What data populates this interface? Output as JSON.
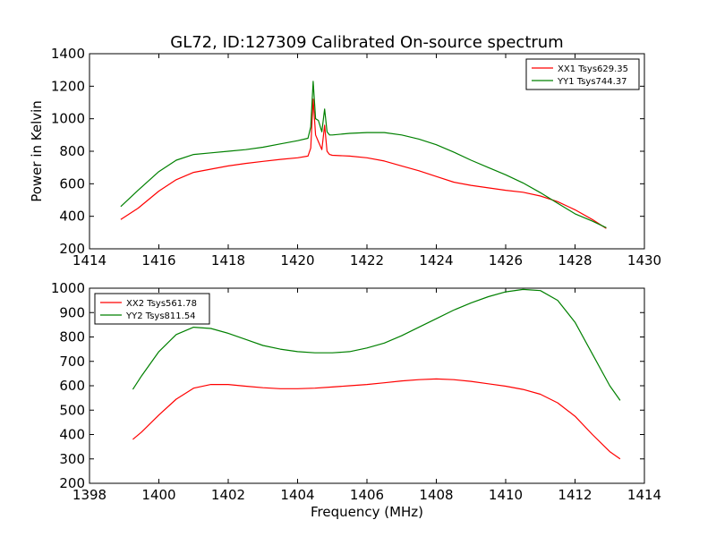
{
  "title": "GL72, ID:127309 Calibrated On-source spectrum",
  "colors": {
    "xx": "#ff0000",
    "yy": "#008000"
  },
  "chart_data": [
    {
      "type": "line",
      "title": "GL72, ID:127309 Calibrated On-source spectrum",
      "xlabel": "",
      "ylabel": "Power in Kelvin",
      "xlim": [
        1414,
        1430
      ],
      "ylim": [
        200,
        1400
      ],
      "xticks": [
        1414,
        1416,
        1418,
        1420,
        1422,
        1424,
        1426,
        1428,
        1430
      ],
      "yticks": [
        200,
        400,
        600,
        800,
        1000,
        1200,
        1400
      ],
      "grid": false,
      "legend_position": "top-right",
      "series": [
        {
          "name": "XX1 Tsys629.35",
          "color": "#ff0000",
          "x": [
            1414.9,
            1415.4,
            1416.0,
            1416.5,
            1417.0,
            1417.5,
            1418.0,
            1418.5,
            1419.0,
            1419.5,
            1420.0,
            1420.3,
            1420.38,
            1420.45,
            1420.52,
            1420.6,
            1420.7,
            1420.78,
            1420.85,
            1420.92,
            1421.0,
            1421.5,
            1422.0,
            1422.5,
            1423.0,
            1423.5,
            1424.0,
            1424.5,
            1425.0,
            1425.5,
            1426.0,
            1426.5,
            1427.0,
            1427.5,
            1428.0,
            1428.5,
            1428.9
          ],
          "y": [
            380,
            450,
            555,
            625,
            670,
            690,
            710,
            725,
            738,
            750,
            760,
            770,
            820,
            1120,
            900,
            860,
            810,
            960,
            800,
            780,
            775,
            770,
            760,
            740,
            710,
            680,
            645,
            610,
            590,
            575,
            560,
            548,
            525,
            490,
            440,
            380,
            325
          ]
        },
        {
          "name": "YY1 Tsys744.37",
          "color": "#008000",
          "x": [
            1414.9,
            1415.4,
            1416.0,
            1416.5,
            1417.0,
            1417.5,
            1418.0,
            1418.5,
            1419.0,
            1419.5,
            1420.0,
            1420.3,
            1420.38,
            1420.45,
            1420.52,
            1420.6,
            1420.7,
            1420.78,
            1420.85,
            1420.92,
            1421.0,
            1421.5,
            1422.0,
            1422.5,
            1423.0,
            1423.5,
            1424.0,
            1424.5,
            1425.0,
            1425.5,
            1426.0,
            1426.5,
            1427.0,
            1427.5,
            1428.0,
            1428.5,
            1428.9
          ],
          "y": [
            460,
            560,
            675,
            745,
            780,
            790,
            800,
            810,
            825,
            845,
            865,
            880,
            950,
            1230,
            1000,
            990,
            920,
            1060,
            920,
            900,
            900,
            910,
            915,
            915,
            900,
            875,
            840,
            795,
            745,
            700,
            655,
            605,
            545,
            480,
            415,
            370,
            330
          ]
        }
      ]
    },
    {
      "type": "line",
      "title": "",
      "xlabel": "Frequency (MHz)",
      "ylabel": "",
      "xlim": [
        1398,
        1414
      ],
      "ylim": [
        200,
        1000
      ],
      "xticks": [
        1398,
        1400,
        1402,
        1404,
        1406,
        1408,
        1410,
        1412,
        1414
      ],
      "yticks": [
        200,
        300,
        400,
        500,
        600,
        700,
        800,
        900,
        1000
      ],
      "grid": false,
      "legend_position": "top-left",
      "series": [
        {
          "name": "XX2 Tsys561.78",
          "color": "#ff0000",
          "x": [
            1399.25,
            1399.5,
            1400.0,
            1400.5,
            1401.0,
            1401.5,
            1402.0,
            1402.5,
            1403.0,
            1403.5,
            1404.0,
            1404.5,
            1405.0,
            1405.5,
            1406.0,
            1406.5,
            1407.0,
            1407.5,
            1408.0,
            1408.5,
            1409.0,
            1409.5,
            1410.0,
            1410.5,
            1411.0,
            1411.5,
            1412.0,
            1412.5,
            1413.0,
            1413.3
          ],
          "y": [
            380,
            410,
            480,
            545,
            590,
            605,
            605,
            598,
            592,
            588,
            588,
            590,
            595,
            600,
            605,
            612,
            620,
            625,
            628,
            625,
            618,
            608,
            598,
            585,
            565,
            530,
            475,
            400,
            330,
            300
          ]
        },
        {
          "name": "YY2 Tsys811.54",
          "color": "#008000",
          "x": [
            1399.25,
            1399.5,
            1400.0,
            1400.5,
            1401.0,
            1401.5,
            1402.0,
            1402.5,
            1403.0,
            1403.5,
            1404.0,
            1404.5,
            1405.0,
            1405.5,
            1406.0,
            1406.5,
            1407.0,
            1407.5,
            1408.0,
            1408.5,
            1409.0,
            1409.5,
            1410.0,
            1410.5,
            1411.0,
            1411.5,
            1412.0,
            1412.5,
            1413.0,
            1413.3
          ],
          "y": [
            585,
            640,
            740,
            810,
            840,
            835,
            815,
            790,
            765,
            750,
            740,
            735,
            735,
            740,
            755,
            775,
            805,
            840,
            875,
            910,
            940,
            965,
            985,
            995,
            990,
            950,
            860,
            730,
            600,
            540
          ]
        }
      ]
    }
  ]
}
